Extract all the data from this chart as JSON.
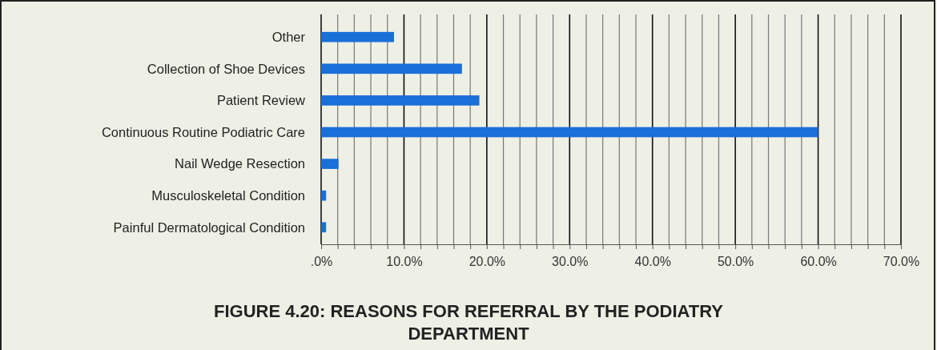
{
  "chart_data": {
    "type": "bar",
    "orientation": "horizontal",
    "title": "FIGURE 4.20: REASONS FOR REFERRAL BY THE PODIATRY DEPARTMENT",
    "categories": [
      "Other",
      "Collection of Shoe Devices",
      "Patient  Review",
      "Continuous Routine Podiatric Care",
      "Nail Wedge Resection",
      "Musculoskeletal Condition",
      "Painful Dermatological Condition"
    ],
    "values": [
      8.8,
      17.0,
      19.1,
      60.0,
      2.1,
      0.6,
      0.6
    ],
    "color": "#1a6fd8",
    "xlim": [
      0,
      70
    ],
    "xticks": [
      {
        "value": 0,
        "label": ".0%"
      },
      {
        "value": 2,
        "label": null
      },
      {
        "value": 4,
        "label": null
      },
      {
        "value": 6,
        "label": null
      },
      {
        "value": 8,
        "label": null
      },
      {
        "value": 10,
        "label": "10.0%"
      },
      {
        "value": 12,
        "label": null
      },
      {
        "value": 14,
        "label": null
      },
      {
        "value": 16,
        "label": null
      },
      {
        "value": 18,
        "label": null
      },
      {
        "value": 20,
        "label": "20.0%"
      },
      {
        "value": 22,
        "label": null
      },
      {
        "value": 24,
        "label": null
      },
      {
        "value": 26,
        "label": null
      },
      {
        "value": 28,
        "label": null
      },
      {
        "value": 30,
        "label": "30.0%"
      },
      {
        "value": 32,
        "label": null
      },
      {
        "value": 34,
        "label": null
      },
      {
        "value": 36,
        "label": null
      },
      {
        "value": 38,
        "label": null
      },
      {
        "value": 40,
        "label": "40.0%"
      },
      {
        "value": 42,
        "label": null
      },
      {
        "value": 44,
        "label": null
      },
      {
        "value": 46,
        "label": null
      },
      {
        "value": 48,
        "label": null
      },
      {
        "value": 50,
        "label": "50.0%"
      },
      {
        "value": 52,
        "label": null
      },
      {
        "value": 54,
        "label": null
      },
      {
        "value": 56,
        "label": null
      },
      {
        "value": 58,
        "label": null
      },
      {
        "value": 60,
        "label": "60.0%"
      },
      {
        "value": 62,
        "label": null
      },
      {
        "value": 64,
        "label": null
      },
      {
        "value": 66,
        "label": null
      },
      {
        "value": 68,
        "label": null
      },
      {
        "value": 70,
        "label": "70.0%"
      }
    ],
    "grid": "x"
  }
}
